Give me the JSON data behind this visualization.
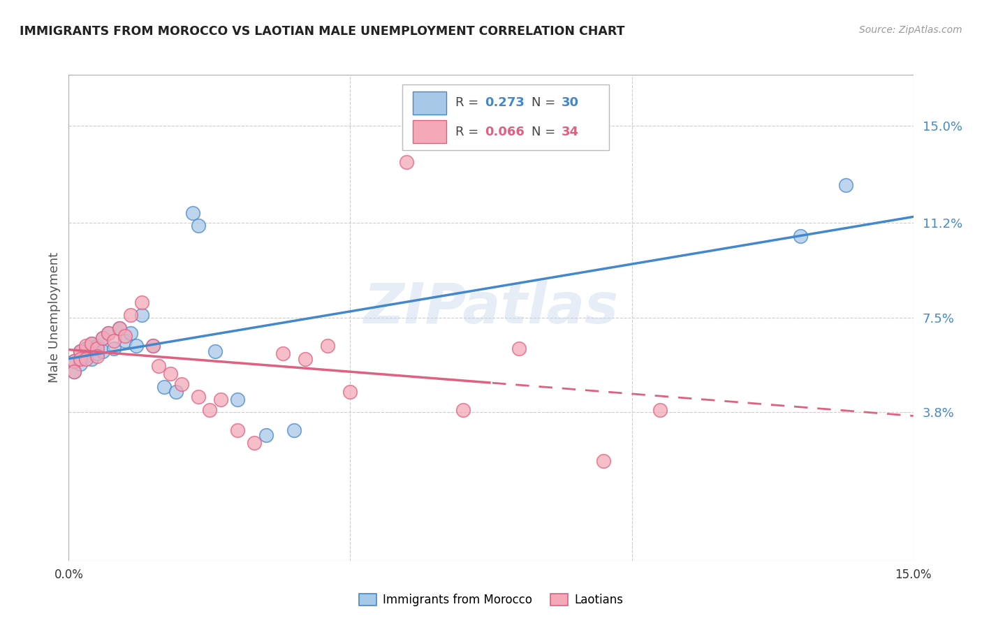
{
  "title": "IMMIGRANTS FROM MOROCCO VS LAOTIAN MALE UNEMPLOYMENT CORRELATION CHART",
  "source": "Source: ZipAtlas.com",
  "ylabel": "Male Unemployment",
  "right_yticks": [
    "15.0%",
    "11.2%",
    "7.5%",
    "3.8%"
  ],
  "right_ytick_vals": [
    0.15,
    0.112,
    0.075,
    0.038
  ],
  "xlim": [
    0.0,
    0.15
  ],
  "ylim": [
    -0.02,
    0.17
  ],
  "legend_r1": "0.273",
  "legend_n1": "30",
  "legend_r2": "0.066",
  "legend_n2": "34",
  "blue_color": "#a8c8e8",
  "pink_color": "#f4a8b8",
  "line_blue": "#4488cc",
  "line_pink": "#e06080",
  "watermark": "ZIPatlas",
  "background_color": "#ffffff",
  "grid_color": "#cccccc",
  "morocco_x": [
    0.001,
    0.001,
    0.002,
    0.002,
    0.003,
    0.003,
    0.004,
    0.004,
    0.005,
    0.005,
    0.006,
    0.006,
    0.007,
    0.008,
    0.009,
    0.01,
    0.011,
    0.012,
    0.013,
    0.015,
    0.017,
    0.019,
    0.022,
    0.023,
    0.026,
    0.03,
    0.035,
    0.04,
    0.13,
    0.138
  ],
  "morocco_y": [
    0.058,
    0.054,
    0.062,
    0.057,
    0.063,
    0.06,
    0.065,
    0.059,
    0.064,
    0.061,
    0.067,
    0.062,
    0.069,
    0.063,
    0.071,
    0.066,
    0.069,
    0.064,
    0.076,
    0.064,
    0.048,
    0.046,
    0.116,
    0.111,
    0.062,
    0.043,
    0.029,
    0.031,
    0.107,
    0.127
  ],
  "laotian_x": [
    0.001,
    0.001,
    0.002,
    0.002,
    0.003,
    0.003,
    0.004,
    0.005,
    0.005,
    0.006,
    0.007,
    0.008,
    0.009,
    0.01,
    0.011,
    0.013,
    0.015,
    0.016,
    0.018,
    0.02,
    0.023,
    0.025,
    0.027,
    0.03,
    0.033,
    0.038,
    0.042,
    0.046,
    0.05,
    0.06,
    0.07,
    0.08,
    0.095,
    0.105
  ],
  "laotian_y": [
    0.058,
    0.054,
    0.062,
    0.059,
    0.064,
    0.059,
    0.065,
    0.063,
    0.06,
    0.067,
    0.069,
    0.066,
    0.071,
    0.068,
    0.076,
    0.081,
    0.064,
    0.056,
    0.053,
    0.049,
    0.044,
    0.039,
    0.043,
    0.031,
    0.026,
    0.061,
    0.059,
    0.064,
    0.046,
    0.136,
    0.039,
    0.063,
    0.019,
    0.039
  ]
}
